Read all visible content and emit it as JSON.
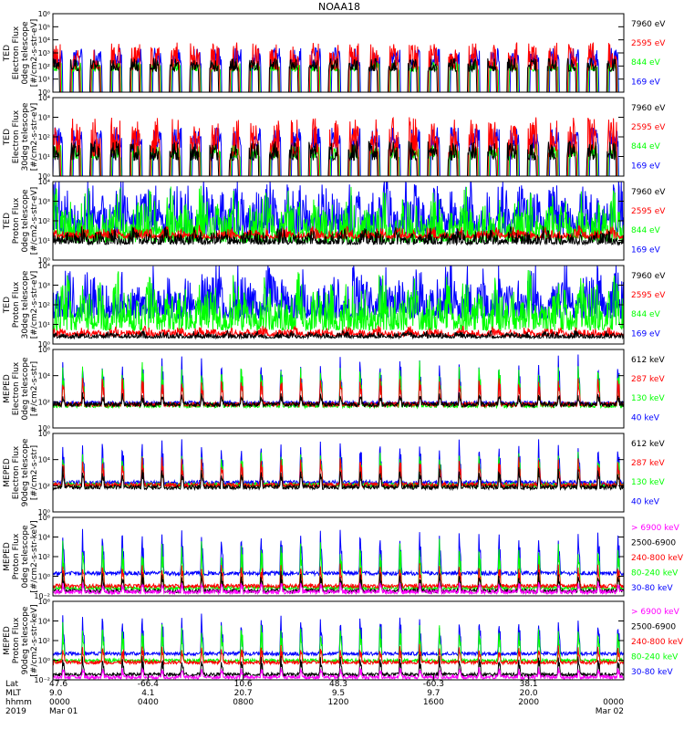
{
  "title": "NOAA18",
  "colors": {
    "black": "#000000",
    "red": "#ff0000",
    "green": "#00ff00",
    "blue": "#0000ff",
    "magenta": "#ff00ff"
  },
  "chart_data": [
    {
      "type": "line",
      "instrument": "TED",
      "ylabel_lines": [
        "TED",
        "Electron Flux",
        "0deg telescope",
        "[#/cm2-s-str-eV]"
      ],
      "ylog": true,
      "ylim_exp": [
        0,
        6
      ],
      "ytick_labels": [
        "10⁰",
        "10¹",
        "10²",
        "10³",
        "10⁴",
        "10⁵",
        "10⁶"
      ],
      "series": [
        {
          "name": "7960 eV",
          "color": "#000000",
          "base": 1.6,
          "peak": 2.6,
          "style": "spiky"
        },
        {
          "name": "2595 eV",
          "color": "#ff0000",
          "base": 1.7,
          "peak": 3.8,
          "style": "spiky"
        },
        {
          "name": "844 eV",
          "color": "#00ff00",
          "base": 1.6,
          "peak": 2.3,
          "style": "spiky"
        },
        {
          "name": "169 eV",
          "color": "#0000ff",
          "base": 2.0,
          "peak": 3.4,
          "style": "spiky"
        }
      ]
    },
    {
      "type": "line",
      "instrument": "TED",
      "ylabel_lines": [
        "TED",
        "Electron Flux",
        "30deg telescope",
        "[#/cm2-s-str-eV]"
      ],
      "ylog": true,
      "ylim_exp": [
        0,
        4
      ],
      "ytick_labels": [
        "10⁰",
        "10¹",
        "10²",
        "10³",
        "10⁴"
      ],
      "series": [
        {
          "name": "7960 eV",
          "color": "#000000",
          "base": 0.8,
          "peak": 1.8,
          "style": "spiky"
        },
        {
          "name": "2595 eV",
          "color": "#ff0000",
          "base": 1.0,
          "peak": 3.0,
          "style": "spiky"
        },
        {
          "name": "844 eV",
          "color": "#00ff00",
          "base": 0.9,
          "peak": 1.6,
          "style": "spiky"
        },
        {
          "name": "169 eV",
          "color": "#0000ff",
          "base": 1.4,
          "peak": 2.5,
          "style": "spiky"
        }
      ]
    },
    {
      "type": "line",
      "instrument": "TED",
      "ylabel_lines": [
        "TED",
        "Proton Flux",
        "0deg telescope",
        "[#/cm2-s-str-eV]"
      ],
      "ylog": true,
      "ylim_exp": [
        0,
        4
      ],
      "ytick_labels": [
        "10⁰",
        "10¹",
        "10²",
        "10³",
        "10⁴"
      ],
      "series": [
        {
          "name": "7960 eV",
          "color": "#000000",
          "base": 0.8,
          "peak": 1.5,
          "style": "noisy"
        },
        {
          "name": "2595 eV",
          "color": "#ff0000",
          "base": 1.1,
          "peak": 1.6,
          "style": "noisy"
        },
        {
          "name": "844 eV",
          "color": "#00ff00",
          "base": 0.9,
          "peak": 3.2,
          "style": "noisy"
        },
        {
          "name": "169 eV",
          "color": "#0000ff",
          "base": 1.3,
          "peak": 3.8,
          "style": "noisy"
        }
      ]
    },
    {
      "type": "line",
      "instrument": "TED",
      "ylabel_lines": [
        "TED",
        "Proton Flux",
        "30deg telescope",
        "[#/cm2-s-str-eV]"
      ],
      "ylog": true,
      "ylim_exp": [
        0,
        4
      ],
      "ytick_labels": [
        "10⁰",
        "10¹",
        "10²",
        "10³",
        "10⁴"
      ],
      "series": [
        {
          "name": "7960 eV",
          "color": "#000000",
          "base": 0.3,
          "peak": 0.6,
          "style": "noisy"
        },
        {
          "name": "2595 eV",
          "color": "#ff0000",
          "base": 0.4,
          "peak": 0.8,
          "style": "noisy"
        },
        {
          "name": "844 eV",
          "color": "#00ff00",
          "base": 0.7,
          "peak": 3.0,
          "style": "noisy"
        },
        {
          "name": "169 eV",
          "color": "#0000ff",
          "base": 1.3,
          "peak": 3.7,
          "style": "noisy"
        }
      ]
    },
    {
      "type": "line",
      "instrument": "MEPED",
      "ylabel_lines": [
        "MEPED",
        "Electron Flux",
        "0deg telescope",
        "[#/cm2-s-str]"
      ],
      "ylog": true,
      "ylim_exp": [
        0,
        7
      ],
      "ytick_labels": [
        "10⁰",
        "10²",
        "10⁴",
        "10⁶"
      ],
      "series": [
        {
          "name": "612 keV",
          "color": "#000000",
          "base": 2.1,
          "peak": 3.0,
          "style": "orbital"
        },
        {
          "name": "287 keV",
          "color": "#ff0000",
          "base": 2.1,
          "peak": 4.6,
          "style": "orbital"
        },
        {
          "name": "130 keV",
          "color": "#00ff00",
          "base": 2.0,
          "peak": 5.6,
          "style": "orbital"
        },
        {
          "name": "40 keV",
          "color": "#0000ff",
          "base": 2.2,
          "peak": 6.2,
          "style": "orbital"
        }
      ]
    },
    {
      "type": "line",
      "instrument": "MEPED",
      "ylabel_lines": [
        "MEPED",
        "Electron Flux",
        "90deg telescope",
        "[#/cm2-s-str]"
      ],
      "ylog": true,
      "ylim_exp": [
        0,
        7
      ],
      "ytick_labels": [
        "10⁰",
        "10²",
        "10⁴",
        "10⁶"
      ],
      "series": [
        {
          "name": "612 keV",
          "color": "#000000",
          "base": 2.2,
          "peak": 3.8,
          "style": "orbital"
        },
        {
          "name": "287 keV",
          "color": "#ff0000",
          "base": 2.4,
          "peak": 4.8,
          "style": "orbital"
        },
        {
          "name": "130 keV",
          "color": "#00ff00",
          "base": 2.4,
          "peak": 5.3,
          "style": "orbital"
        },
        {
          "name": "40 keV",
          "color": "#0000ff",
          "base": 2.6,
          "peak": 6.2,
          "style": "orbital"
        }
      ]
    },
    {
      "type": "line",
      "instrument": "MEPED",
      "ylabel_lines": [
        "MEPED",
        "Proton Flux",
        "0deg telescope",
        "[#/cm2-s-str-keV]"
      ],
      "ylog": true,
      "ylim_exp": [
        -2,
        6
      ],
      "ytick_labels": [
        "10⁻²",
        "10⁰",
        "10²",
        "10⁴",
        "10⁶"
      ],
      "series": [
        {
          "name": "> 6900 keV",
          "color": "#ff00ff",
          "base": -1.6,
          "peak": -0.6,
          "style": "orbital"
        },
        {
          "name": "2500-6900",
          "color": "#000000",
          "base": -1.5,
          "peak": 0.3,
          "style": "orbital"
        },
        {
          "name": "240-800 keV",
          "color": "#ff0000",
          "base": -1.0,
          "peak": 1.2,
          "style": "orbital"
        },
        {
          "name": "80-240 keV",
          "color": "#00ff00",
          "base": -1.2,
          "peak": 3.5,
          "style": "orbital"
        },
        {
          "name": "30-80 keV",
          "color": "#0000ff",
          "base": 0.3,
          "peak": 4.5,
          "style": "orbital"
        }
      ]
    },
    {
      "type": "line",
      "instrument": "MEPED",
      "ylabel_lines": [
        "MEPED",
        "Proton Flux",
        "90deg telescope",
        "[#/cm2-s-str-keV]"
      ],
      "ylog": true,
      "ylim_exp": [
        -2,
        7
      ],
      "ytick_labels": [
        "10⁻²",
        "10⁰",
        "10²",
        "10⁴",
        "10⁶"
      ],
      "series": [
        {
          "name": "> 6900 keV",
          "color": "#ff00ff",
          "base": -1.7,
          "peak": -0.6,
          "style": "orbital"
        },
        {
          "name": "2500-6900",
          "color": "#000000",
          "base": -1.4,
          "peak": 0.6,
          "style": "orbital"
        },
        {
          "name": "240-800 keV",
          "color": "#ff0000",
          "base": 0.0,
          "peak": 1.8,
          "style": "orbital"
        },
        {
          "name": "80-240 keV",
          "color": "#00ff00",
          "base": 0.2,
          "peak": 4.2,
          "style": "orbital"
        },
        {
          "name": "30-80 keV",
          "color": "#0000ff",
          "base": 1.0,
          "peak": 5.2,
          "style": "orbital"
        }
      ]
    }
  ],
  "x_axis": {
    "row_labels": [
      "Lat",
      "MLT",
      "hhmm",
      "2019"
    ],
    "ticks": [
      {
        "lat": "47.6",
        "mlt": "9.0",
        "hhmm": "0000",
        "date": "Mar 01",
        "frac": 0.0
      },
      {
        "lat": "-66.4",
        "mlt": "4.1",
        "hhmm": "0400",
        "date": "",
        "frac": 0.1667
      },
      {
        "lat": "10.6",
        "mlt": "20.7",
        "hhmm": "0800",
        "date": "",
        "frac": 0.3333
      },
      {
        "lat": "48.3",
        "mlt": "9.5",
        "hhmm": "1200",
        "date": "",
        "frac": 0.5
      },
      {
        "lat": "-60.3",
        "mlt": "9.7",
        "hhmm": "1600",
        "date": "",
        "frac": 0.6667
      },
      {
        "lat": "38.1",
        "mlt": "20.0",
        "hhmm": "2000",
        "date": "",
        "frac": 0.8333
      },
      {
        "lat": "",
        "mlt": "",
        "hhmm": "0000",
        "date": "Mar 02",
        "frac": 1.0
      }
    ]
  }
}
